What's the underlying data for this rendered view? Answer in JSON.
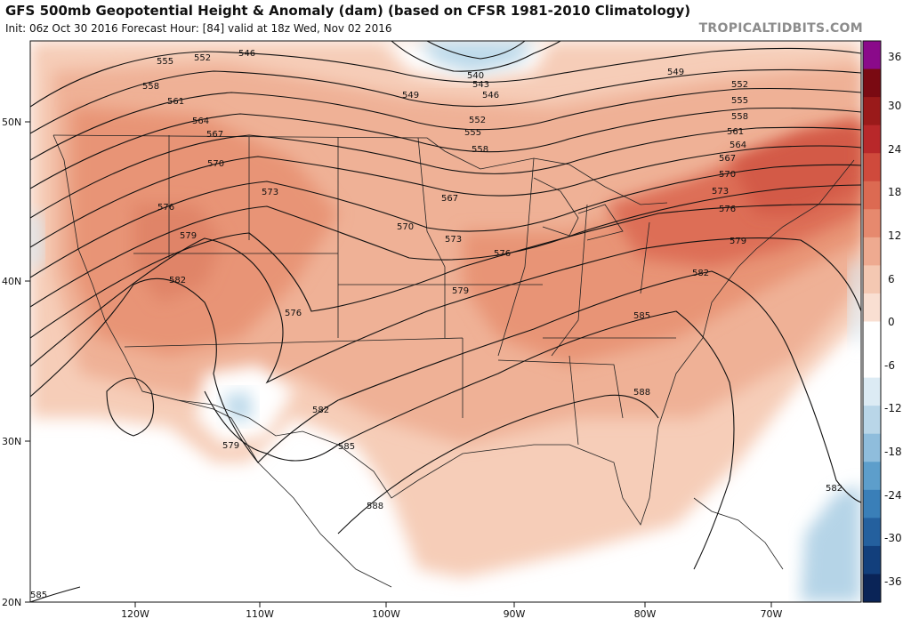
{
  "header": {
    "title": "GFS 500mb Geopotential Height & Anomaly (dam) (based on CFSR 1981-2010 Climatology)",
    "subtitle": "Init: 06z Oct 30 2016   Forecast Hour: [84]   valid at 18z Wed, Nov 02 2016",
    "brand": "TROPICALTIDBITS.COM"
  },
  "map": {
    "projection": "lat-lon",
    "lon_range": [
      -128,
      -62
    ],
    "lat_range": [
      20,
      55
    ],
    "lat_ticks": [
      "50N",
      "40N",
      "30N",
      "20N"
    ],
    "lon_ticks": [
      "120W",
      "110W",
      "100W",
      "90W",
      "80W",
      "70W"
    ],
    "height_contour_labels": [
      "555",
      "552",
      "546",
      "540",
      "543",
      "546",
      "549",
      "549",
      "552",
      "555",
      "558",
      "558",
      "561",
      "564",
      "567",
      "570",
      "573",
      "576",
      "579",
      "582",
      "576",
      "567",
      "570",
      "573",
      "576",
      "579",
      "582",
      "579",
      "582",
      "585",
      "552",
      "555",
      "558",
      "561",
      "564",
      "567",
      "570",
      "573",
      "576",
      "579",
      "582",
      "585",
      "588",
      "588",
      "585",
      "582",
      "585"
    ]
  },
  "colorbar": {
    "labels": [
      "36",
      "30",
      "24",
      "18",
      "12",
      "6",
      "0",
      "-6",
      "-12",
      "-18",
      "-24",
      "-30",
      "-36"
    ],
    "colors": [
      "#8a0a8a",
      "#7a0a12",
      "#9a1a1a",
      "#b8282a",
      "#cf4a3c",
      "#dc6a52",
      "#e6896e",
      "#eeaa90",
      "#f4c8b2",
      "#f9dfd2",
      "#ffffff",
      "#ffffff",
      "#dcebf4",
      "#b9d6e8",
      "#8fbddc",
      "#5d9ecb",
      "#3a7fb8",
      "#24609e",
      "#123f7c",
      "#0a2457"
    ]
  }
}
